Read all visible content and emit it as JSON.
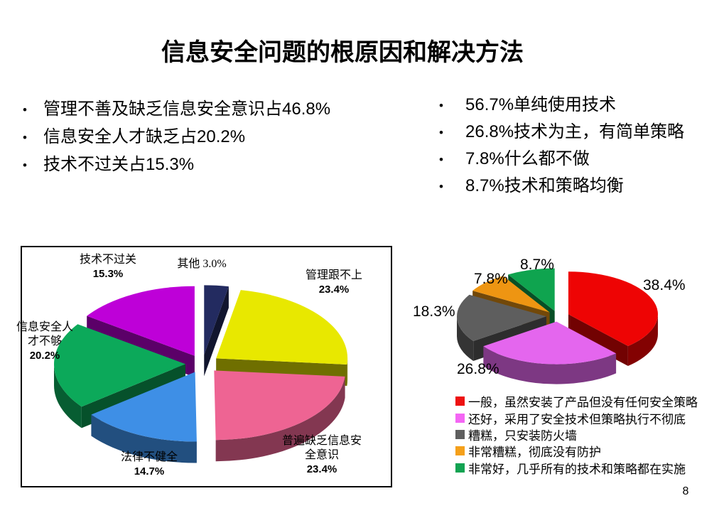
{
  "slide": {
    "title": "信息安全问题的根原因和解决方法",
    "page_number": "8"
  },
  "left_list": {
    "items": [
      "管理不善及缺乏信息安全意识占46.8%",
      "信息安全人才缺乏占20.2%",
      "技术不过关占15.3%"
    ]
  },
  "right_list": {
    "items": [
      "56.7%单纯使用技术",
      "26.8%技术为主，有简单策略",
      "7.8%什么都不做",
      "8.7%技术和策略均衡"
    ]
  },
  "chart_data": [
    {
      "type": "pie",
      "style": "3d-exploded",
      "title": "",
      "start_angle_deg": 0,
      "slices": [
        {
          "label": "其他",
          "value": 3.0,
          "color": "#232B60",
          "point_label_lines": [
            "其他 3.0%"
          ]
        },
        {
          "label": "管理跟不上",
          "value": 23.4,
          "color": "#E8E800",
          "point_label_lines": [
            "管理跟不上",
            "23.4%"
          ]
        },
        {
          "label": "普遍缺乏信息安全意识",
          "value": 23.4,
          "color": "#EE6493",
          "point_label_lines": [
            "普遍缺乏信息安",
            "全意识",
            "23.4%"
          ]
        },
        {
          "label": "法律不健全",
          "value": 14.7,
          "color": "#3E8FE6",
          "point_label_lines": [
            "法律不健全",
            "14.7%"
          ]
        },
        {
          "label": "信息安全人才不够",
          "value": 20.2,
          "color": "#0CA95A",
          "point_label_lines": [
            "信息安全人",
            "才不够",
            "20.2%"
          ]
        },
        {
          "label": "技术不过关",
          "value": 15.3,
          "color": "#BE00D8",
          "point_label_lines": [
            "技术不过关",
            "15.3%"
          ]
        }
      ]
    },
    {
      "type": "pie",
      "style": "3d-exploded",
      "title": "",
      "start_angle_deg": 0,
      "slices": [
        {
          "label": "一般，虽然安装了产品但没有任何安全策略",
          "value": 38.4,
          "color": "#EE0404",
          "point_label_lines": [
            "38.4%"
          ]
        },
        {
          "label": "还好，采用了安全技术但策略执行不彻底",
          "value": 26.8,
          "color": "#E466EE",
          "point_label_lines": [
            "26.8%"
          ]
        },
        {
          "label": "糟糕，只安装防火墙",
          "value": 18.3,
          "color": "#5E5E5E",
          "point_label_lines": [
            "18.3%"
          ]
        },
        {
          "label": "非常糟糕，彻底没有防护",
          "value": 7.8,
          "color": "#EE9512",
          "point_label_lines": [
            "7.8%"
          ]
        },
        {
          "label": "非常好，几乎所有的技术和策略都在实施",
          "value": 8.7,
          "color": "#0FA44F",
          "point_label_lines": [
            "8.7%"
          ]
        }
      ],
      "legend_position": "bottom",
      "legend": [
        {
          "text": "一般，虽然安装了产品但没有任何安全策略",
          "color": "#EE1111"
        },
        {
          "text": "还好，采用了安全技术但策略执行不彻底",
          "color": "#F466F4"
        },
        {
          "text": "糟糕，只安装防火墙",
          "color": "#5E5E5E"
        },
        {
          "text": "非常糟糕，彻底没有防护",
          "color": "#F5A01A"
        },
        {
          "text": "非常好，几乎所有的技术和策略都在实施",
          "color": "#12A352"
        }
      ]
    }
  ]
}
